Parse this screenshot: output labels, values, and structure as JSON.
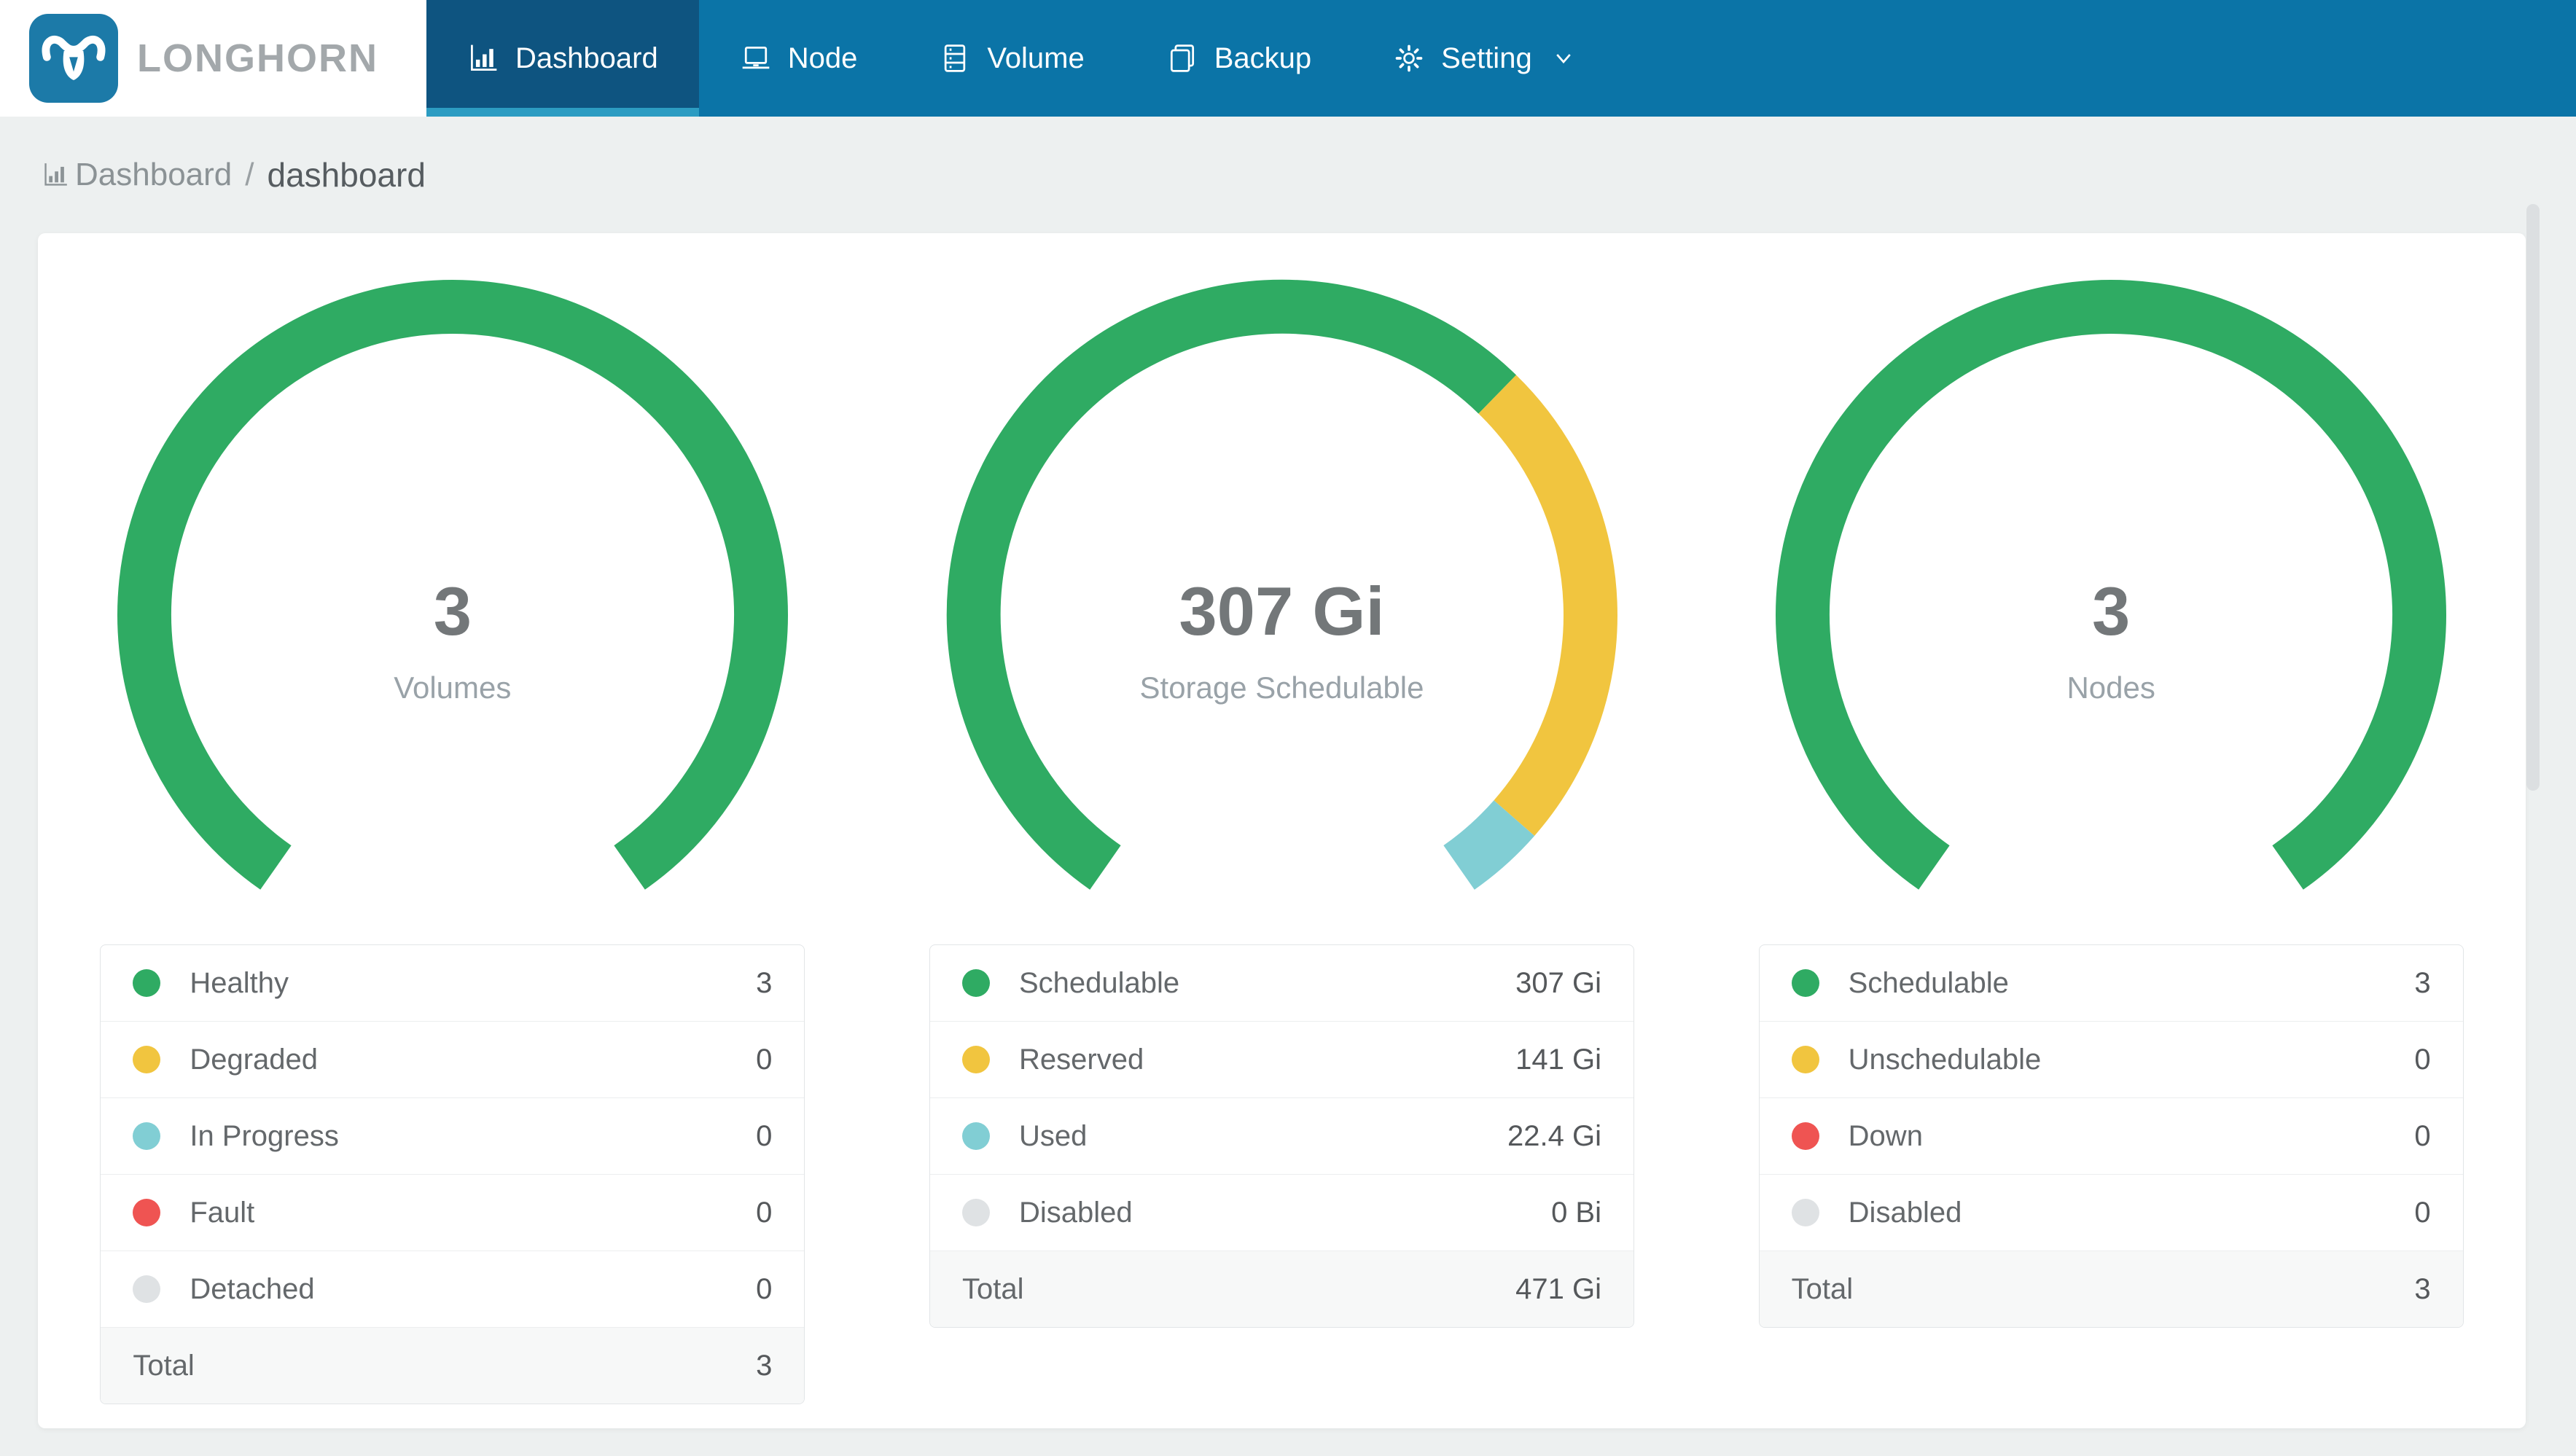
{
  "brand": {
    "name": "LONGHORN"
  },
  "nav": {
    "items": [
      {
        "label": "Dashboard",
        "icon": "bar-chart",
        "active": true
      },
      {
        "label": "Node",
        "icon": "laptop",
        "active": false
      },
      {
        "label": "Volume",
        "icon": "database",
        "active": false
      },
      {
        "label": "Backup",
        "icon": "copy",
        "active": false
      },
      {
        "label": "Setting",
        "icon": "gear",
        "active": false,
        "has_dropdown": true
      }
    ]
  },
  "breadcrumb": {
    "section": "Dashboard",
    "separator": "/",
    "page": "dashboard"
  },
  "colors": {
    "nav_bg": "#0b74a7",
    "nav_active_bg": "#0e5480",
    "nav_active_underline": "#2c9cc2",
    "logo_blue": "#1c7aa8",
    "green": "#2fab63",
    "yellow": "#f1c53f",
    "teal": "#81ced4",
    "red": "#ef5452",
    "gray": "#dfe2e4"
  },
  "charts": [
    {
      "type": "gauge-donut",
      "center": {
        "value": "3",
        "label": "Volumes"
      },
      "legend": {
        "rows": [
          {
            "label": "Healthy",
            "amount": 3,
            "display": "3",
            "color": "#2fab63"
          },
          {
            "label": "Degraded",
            "amount": 0,
            "display": "0",
            "color": "#f1c53f"
          },
          {
            "label": "In Progress",
            "amount": 0,
            "display": "0",
            "color": "#81ced4"
          },
          {
            "label": "Fault",
            "amount": 0,
            "display": "0",
            "color": "#ef5452"
          },
          {
            "label": "Detached",
            "amount": 0,
            "display": "0",
            "color": "#dfe2e4"
          }
        ],
        "total_label": "Total",
        "total_display": "3"
      }
    },
    {
      "type": "gauge-donut",
      "center": {
        "value": "307 Gi",
        "label": "Storage Schedulable"
      },
      "legend": {
        "rows": [
          {
            "label": "Schedulable",
            "amount": 307,
            "display": "307 Gi",
            "color": "#2fab63"
          },
          {
            "label": "Reserved",
            "amount": 141,
            "display": "141 Gi",
            "color": "#f1c53f"
          },
          {
            "label": "Used",
            "amount": 22.4,
            "display": "22.4 Gi",
            "color": "#81ced4"
          },
          {
            "label": "Disabled",
            "amount": 0,
            "display": "0 Bi",
            "color": "#dfe2e4"
          }
        ],
        "total_label": "Total",
        "total_display": "471 Gi"
      }
    },
    {
      "type": "gauge-donut",
      "center": {
        "value": "3",
        "label": "Nodes"
      },
      "legend": {
        "rows": [
          {
            "label": "Schedulable",
            "amount": 3,
            "display": "3",
            "color": "#2fab63"
          },
          {
            "label": "Unschedulable",
            "amount": 0,
            "display": "0",
            "color": "#f1c53f"
          },
          {
            "label": "Down",
            "amount": 0,
            "display": "0",
            "color": "#ef5452"
          },
          {
            "label": "Disabled",
            "amount": 0,
            "display": "0",
            "color": "#dfe2e4"
          }
        ],
        "total_label": "Total",
        "total_display": "3"
      }
    }
  ]
}
